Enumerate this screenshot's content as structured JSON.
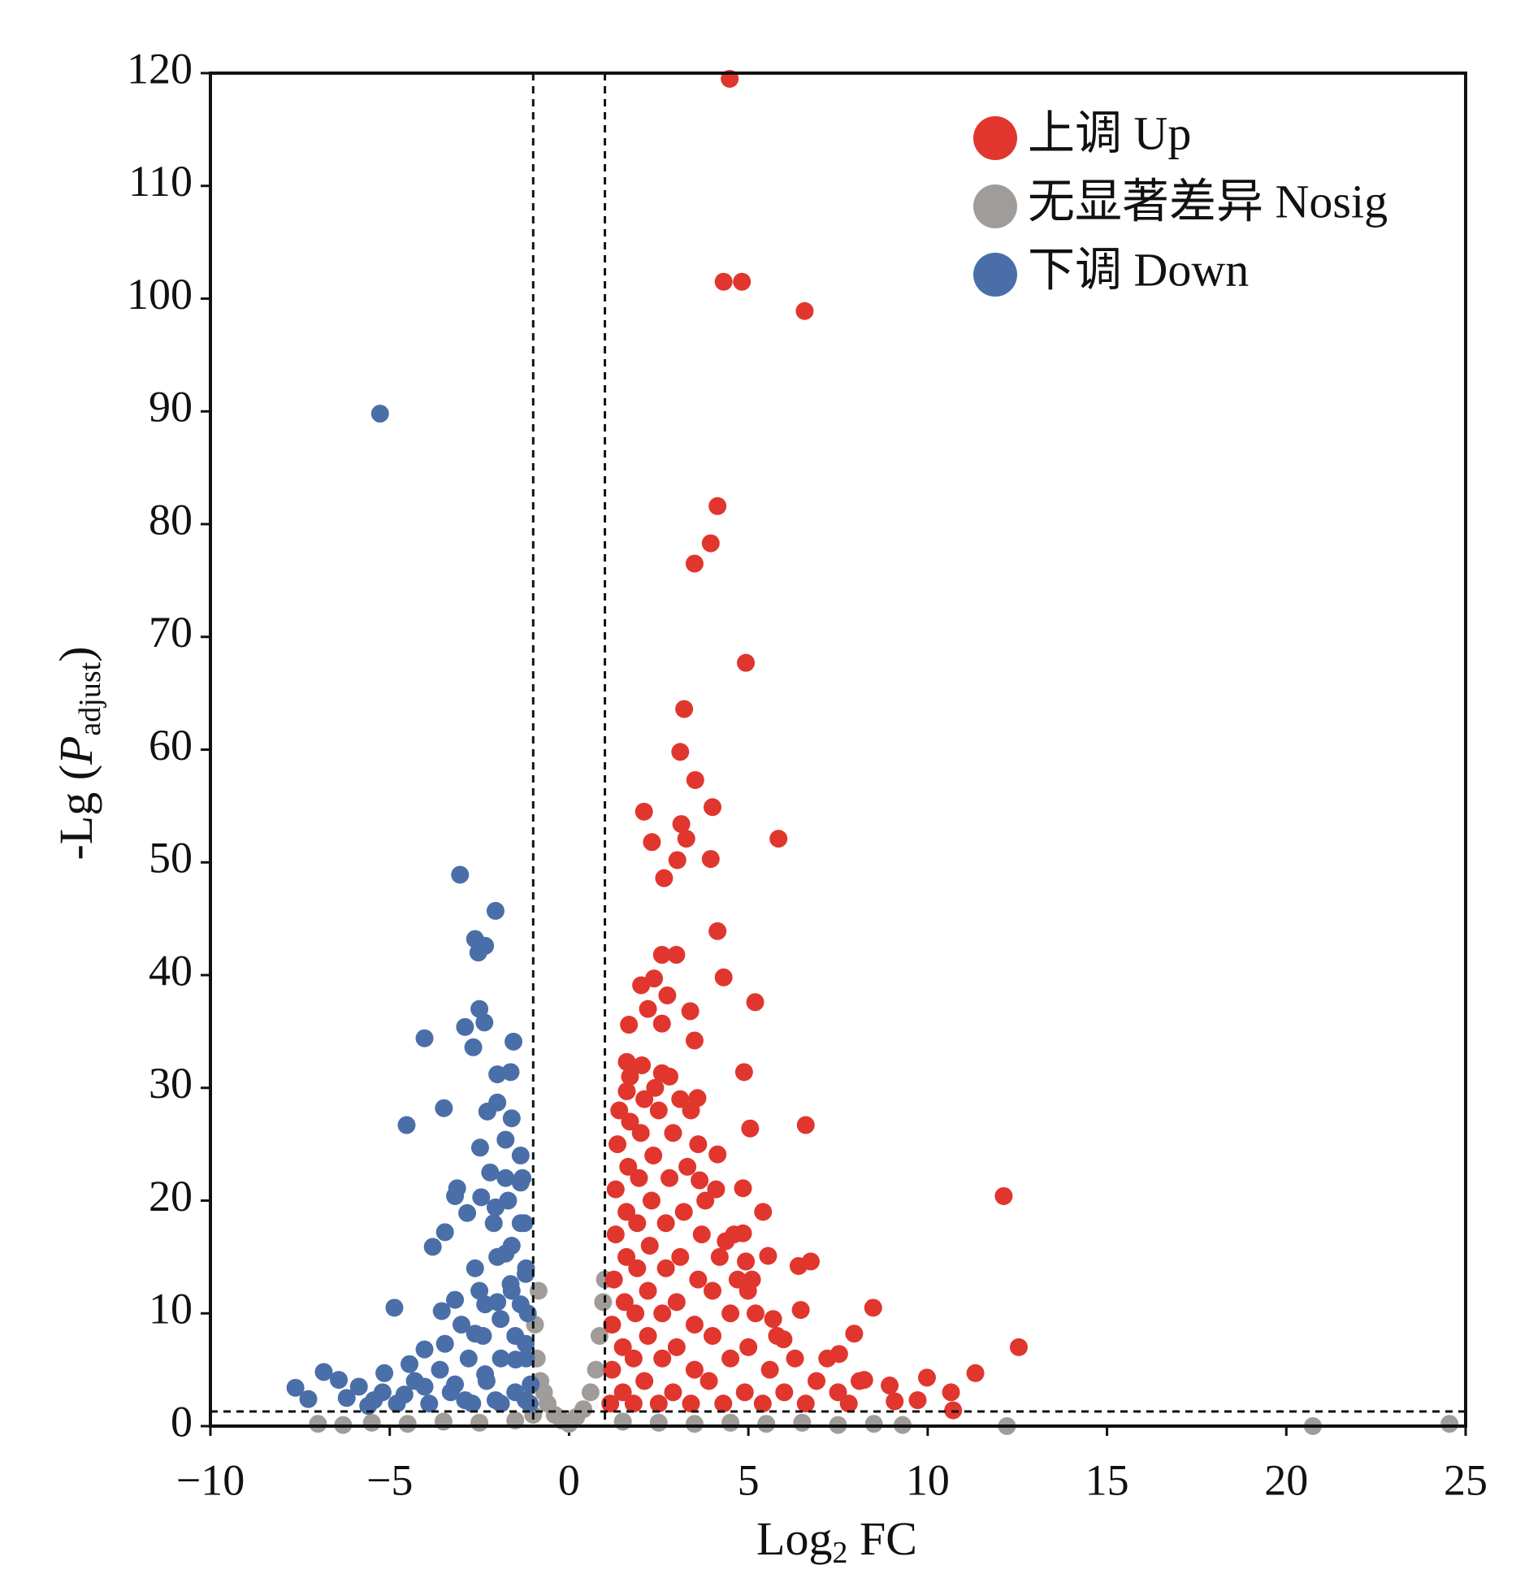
{
  "chart_data": {
    "type": "scatter",
    "x_label": [
      "Log",
      "2",
      " FC"
    ],
    "y_label": [
      "-Lg (",
      "P",
      "adjust",
      ")"
    ],
    "xlim": [
      -10,
      25
    ],
    "xticks": [
      {
        "value": -10,
        "label": "−10"
      },
      {
        "value": -5,
        "label": "−5"
      },
      0,
      5,
      10,
      15,
      20,
      25
    ],
    "ylim": [
      0,
      120
    ],
    "yticks": [
      0,
      10,
      20,
      30,
      40,
      50,
      60,
      70,
      80,
      90,
      100,
      110,
      120
    ],
    "vlines": [
      -1,
      1
    ],
    "hline": 1.3,
    "legend": "top-right",
    "series": [
      {
        "name": "上调 Up",
        "color": "#e0362e",
        "x": [
          4.48,
          4.31,
          4.82,
          6.57,
          4.14,
          3.95,
          3.5,
          4.93,
          3.21,
          3.1,
          3.52,
          2.09,
          4.0,
          3.13,
          2.31,
          3.27,
          5.84,
          3.02,
          3.95,
          2.65,
          4.14,
          2.59,
          2.99,
          4.31,
          2.01,
          2.37,
          2.74,
          5.19,
          2.2,
          3.38,
          2.59,
          1.67,
          3.5,
          1.61,
          2.03,
          4.88,
          2.59,
          3.58,
          1.61,
          5.05,
          6.6,
          4.14,
          3.64,
          4.85,
          12.12,
          5.41,
          4.85,
          4.37,
          5.55,
          4.93,
          6.74,
          6.4,
          4.99,
          5.69,
          6.46,
          8.48,
          12.54,
          7.95,
          5.98,
          7.53,
          11.33,
          9.98,
          8.94,
          10.65,
          9.72,
          10.71,
          8.23,
          9.08,
          1.15,
          1.2,
          1.2,
          1.25,
          1.3,
          1.3,
          1.35,
          1.4,
          1.5,
          1.5,
          1.55,
          1.6,
          1.6,
          1.65,
          1.7,
          1.8,
          1.8,
          1.85,
          1.9,
          1.9,
          1.95,
          2.0,
          2.1,
          2.1,
          2.2,
          2.2,
          2.25,
          2.3,
          2.35,
          2.5,
          2.5,
          2.6,
          2.6,
          2.7,
          2.7,
          2.8,
          2.9,
          2.9,
          3.0,
          3.0,
          3.1,
          3.2,
          3.3,
          3.4,
          3.4,
          3.5,
          3.5,
          3.6,
          3.7,
          3.8,
          3.9,
          4.0,
          4.0,
          4.2,
          4.3,
          4.5,
          4.5,
          4.7,
          4.9,
          5.0,
          5.2,
          5.4,
          5.6,
          5.8,
          6.0,
          6.3,
          6.6,
          6.9,
          7.2,
          7.5,
          7.8,
          8.1,
          3.1,
          2.4,
          1.7,
          2.8,
          3.6,
          4.1,
          4.6,
          5.1
        ],
        "values": [
          119.5,
          101.5,
          101.5,
          98.9,
          81.6,
          78.3,
          76.5,
          67.7,
          63.6,
          59.8,
          57.3,
          54.5,
          54.9,
          53.4,
          51.8,
          52.1,
          52.1,
          50.2,
          50.3,
          48.6,
          43.9,
          41.8,
          41.8,
          39.8,
          39.1,
          39.7,
          38.2,
          37.6,
          37.0,
          36.8,
          35.7,
          35.6,
          34.2,
          32.3,
          32.0,
          31.4,
          31.3,
          29.1,
          29.7,
          26.4,
          26.7,
          24.1,
          21.8,
          21.1,
          20.4,
          19.0,
          17.1,
          16.4,
          15.1,
          14.6,
          14.6,
          14.2,
          12.0,
          9.5,
          10.3,
          10.5,
          7.0,
          8.2,
          7.7,
          6.4,
          4.7,
          4.3,
          3.6,
          3.0,
          2.3,
          1.4,
          4.1,
          2.2,
          2,
          5,
          9,
          13,
          17,
          21,
          25,
          28,
          3,
          7,
          11,
          15,
          19,
          23,
          27,
          2,
          6,
          10,
          14,
          18,
          22,
          26,
          29,
          4,
          8,
          12,
          16,
          20,
          24,
          28,
          2,
          6,
          10,
          14,
          18,
          22,
          26,
          3,
          7,
          11,
          15,
          19,
          23,
          28,
          2,
          5,
          9,
          13,
          17,
          20,
          4,
          8,
          12,
          15,
          2,
          6,
          10,
          13,
          3,
          7,
          10,
          2,
          5,
          8,
          3,
          6,
          2,
          4,
          6,
          3,
          2,
          4,
          29,
          30,
          31,
          31,
          25,
          21,
          17,
          13
        ]
      },
      {
        "name": "无显著差异 Nosig",
        "color": "#a09c9a",
        "x": [
          -7.0,
          -6.3,
          -5.5,
          -4.5,
          -3.5,
          -2.5,
          -1.5,
          -1.0,
          -0.9,
          -0.95,
          -0.85,
          -0.8,
          -0.7,
          -0.6,
          -0.4,
          -0.2,
          0.0,
          0.2,
          0.4,
          0.6,
          0.75,
          0.85,
          0.95,
          1.0,
          1.5,
          2.5,
          3.5,
          4.5,
          5.5,
          6.5,
          7.5,
          8.5,
          9.3,
          12.21,
          20.74,
          24.55
        ],
        "values": [
          0.2,
          0.1,
          0.3,
          0.2,
          0.4,
          0.3,
          0.5,
          1.0,
          6,
          9,
          12,
          4,
          3,
          2,
          1,
          0.5,
          0.2,
          0.8,
          1.5,
          3,
          5,
          8,
          11,
          13,
          0.4,
          0.3,
          0.2,
          0.3,
          0.2,
          0.3,
          0.1,
          0.2,
          0.1,
          0,
          0,
          0.2
        ]
      },
      {
        "name": "下调 Down",
        "color": "#4a6fa8",
        "x": [
          -5.27,
          -3.04,
          -2.05,
          -2.62,
          -2.34,
          -2.53,
          -2.5,
          -2.36,
          -2.9,
          -2.67,
          -4.03,
          -1.55,
          -2.0,
          -1.63,
          -3.49,
          -4.53,
          -2.28,
          -1.6,
          -2.0,
          -2.48,
          -1.77,
          -1.35,
          -3.12,
          -3.18,
          -2.84,
          -2.45,
          -2.05,
          -3.46,
          -3.8,
          -1.35,
          -2.62,
          -1.77,
          -4.87,
          -3.18,
          -3.55,
          -2.34,
          -1.63,
          -1.21,
          -4.03,
          -4.45,
          -5.15,
          -6.84,
          -7.63,
          -6.42,
          -5.86,
          -7.27,
          -5.44,
          -4.59,
          -3.18,
          -2.34,
          -1.49,
          -3.46,
          -2.62,
          -1.91,
          -1.35,
          -1.21,
          -4.03,
          -1.07,
          -2.05,
          -1.21,
          -2.9,
          -1.77,
          -1.35,
          -2.2,
          -1.1,
          -1.2,
          -1.15,
          -1.2,
          -1.25,
          -1.3,
          -1.5,
          -1.5,
          -1.6,
          -1.6,
          -1.7,
          -1.9,
          -1.9,
          -2.0,
          -2.0,
          -2.1,
          -2.3,
          -2.4,
          -2.5,
          -2.7,
          -2.8,
          -3.0,
          -3.3,
          -3.6,
          -3.9,
          -4.3,
          -4.8,
          -5.2,
          -5.6,
          -6.2
        ],
        "values": [
          89.8,
          48.9,
          45.7,
          43.2,
          42.6,
          42.0,
          37.0,
          35.8,
          35.4,
          33.6,
          34.4,
          34.1,
          31.2,
          31.4,
          28.2,
          26.7,
          27.9,
          27.3,
          28.7,
          24.7,
          25.4,
          24.0,
          21.1,
          20.4,
          18.9,
          20.3,
          19.4,
          17.2,
          15.9,
          18.0,
          14.0,
          15.3,
          10.5,
          11.2,
          10.2,
          10.8,
          12.6,
          13.5,
          6.8,
          5.5,
          4.7,
          4.8,
          3.4,
          4.1,
          3.5,
          2.4,
          2.3,
          2.8,
          3.7,
          4.6,
          5.9,
          7.3,
          8.2,
          9.5,
          10.8,
          7.3,
          3.5,
          3.7,
          2.3,
          2.3,
          2.3,
          22.0,
          21.6,
          22.5,
          2,
          6,
          10,
          14,
          18,
          22,
          3,
          8,
          12,
          16,
          20,
          2,
          6,
          11,
          15,
          18,
          4,
          8,
          12,
          2,
          6,
          9,
          3,
          5,
          2,
          4,
          2,
          3,
          1.8,
          2.5
        ]
      }
    ]
  }
}
